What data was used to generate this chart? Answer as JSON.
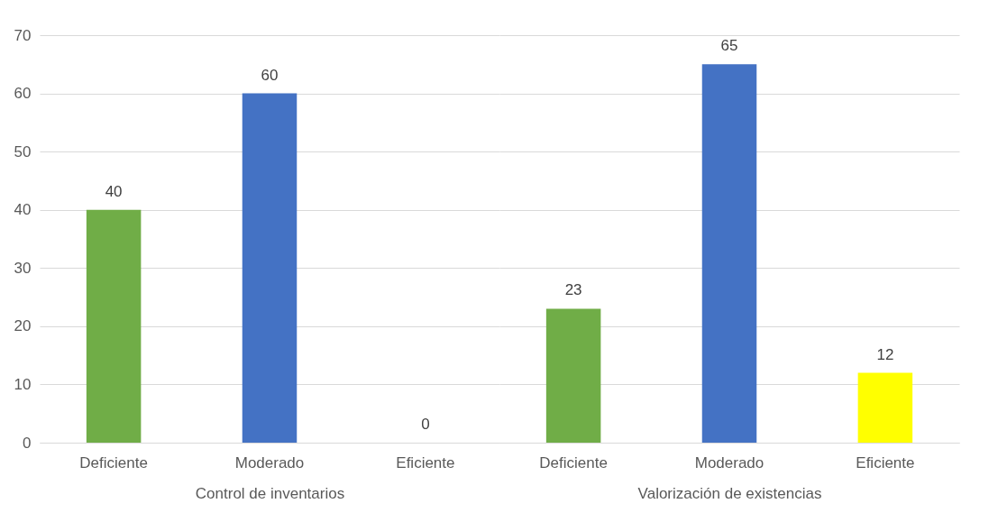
{
  "chart_data": [
    {
      "type": "bar",
      "xlabel": "Control de inventarios",
      "categories": [
        "Deficiente",
        "Moderado",
        "Eficiente"
      ],
      "values": [
        40,
        60,
        0
      ],
      "colors": [
        "#70ad47",
        "#4472c4",
        "#ffff00"
      ],
      "ylim": [
        0,
        70
      ],
      "yticks": [
        0,
        10,
        20,
        30,
        40,
        50,
        60,
        70
      ],
      "grid": "y",
      "data_labels": true
    },
    {
      "type": "bar",
      "xlabel": "Valorización de existencias",
      "categories": [
        "Deficiente",
        "Moderado",
        "Eficiente"
      ],
      "values": [
        23,
        65,
        12
      ],
      "colors": [
        "#70ad47",
        "#4472c4",
        "#ffff00"
      ],
      "ylim": [
        0,
        70
      ],
      "yticks": [
        0,
        10,
        20,
        30,
        40,
        50,
        60,
        70
      ],
      "grid": "y",
      "data_labels": true,
      "tick_labels": "x"
    }
  ]
}
